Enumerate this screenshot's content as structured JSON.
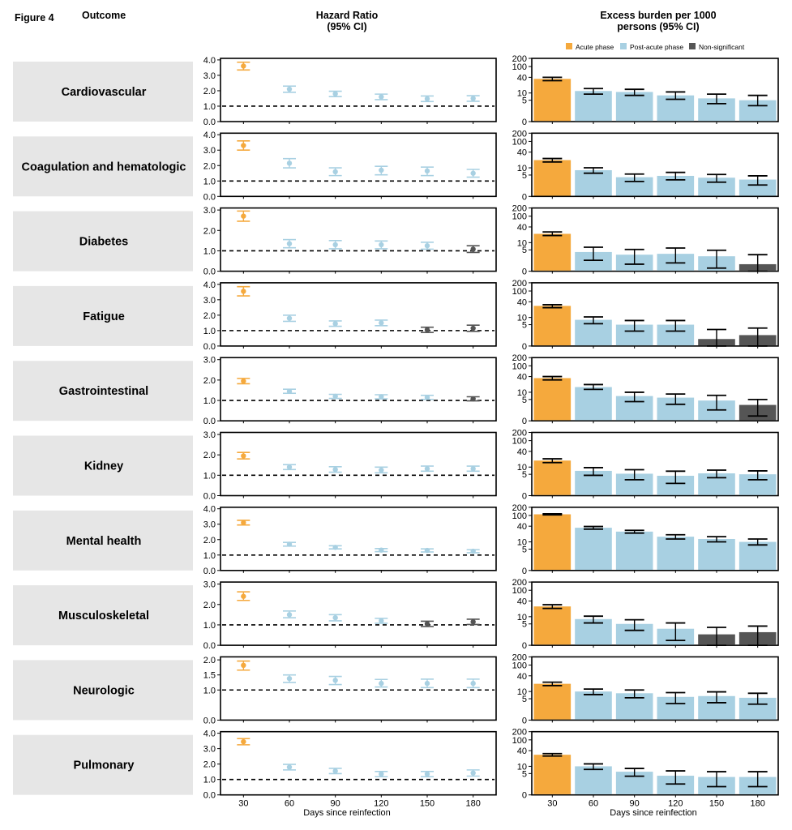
{
  "figure_label": "Figure 4",
  "headers": {
    "outcome": "Outcome",
    "hr_line1": "Hazard Ratio",
    "hr_line2": "(95% CI)",
    "eb_line1": "Excess burden per 1000",
    "eb_line2": "persons (95% CI)"
  },
  "legend": [
    {
      "label": "Acute phase",
      "color": "#F5A93D"
    },
    {
      "label": "Post-acute phase",
      "color": "#A8D0E2"
    },
    {
      "label": "Non-significant",
      "color": "#555555"
    }
  ],
  "colors": {
    "acute": "#F5A93D",
    "post": "#A8D0E2",
    "ns": "#555555",
    "label_bg": "#E6E6E6",
    "dash": "#000000"
  },
  "chart_data": {
    "type": "forest_and_bar",
    "x": [
      30,
      60,
      90,
      120,
      150,
      180
    ],
    "xlabel": "Days since reinfection",
    "outcomes": [
      {
        "name": "Cardiovascular",
        "hr_ticks": [
          "0.0",
          "1.0",
          "2.0",
          "3.0",
          "4.0"
        ],
        "hr_range": [
          0,
          4.1
        ],
        "hr": [
          [
            3.6,
            3.35,
            3.85
          ],
          [
            2.1,
            1.9,
            2.3
          ],
          [
            1.8,
            1.62,
            1.97
          ],
          [
            1.6,
            1.42,
            1.78
          ],
          [
            1.48,
            1.3,
            1.66
          ],
          [
            1.5,
            1.32,
            1.68
          ]
        ],
        "hr_status": [
          "acute",
          "post",
          "post",
          "post",
          "post",
          "post"
        ],
        "eb": [
          [
            35,
            30,
            40
          ],
          [
            12,
            9,
            15
          ],
          [
            11,
            8,
            14
          ],
          [
            8,
            5.5,
            11
          ],
          [
            6,
            3.5,
            9
          ],
          [
            5,
            2.8,
            8
          ]
        ],
        "eb_status": [
          "acute",
          "post",
          "post",
          "post",
          "post",
          "post"
        ]
      },
      {
        "name": "Coagulation and hematologic",
        "hr_ticks": [
          "0.0",
          "1.0",
          "2.0",
          "3.0",
          "4.0"
        ],
        "hr_range": [
          0,
          4.1
        ],
        "hr": [
          [
            3.3,
            3.0,
            3.6
          ],
          [
            2.15,
            1.85,
            2.45
          ],
          [
            1.6,
            1.35,
            1.85
          ],
          [
            1.7,
            1.4,
            1.95
          ],
          [
            1.65,
            1.35,
            1.9
          ],
          [
            1.5,
            1.25,
            1.75
          ]
        ],
        "hr_status": [
          "acute",
          "post",
          "post",
          "post",
          "post",
          "post"
        ],
        "eb": [
          [
            20,
            17,
            23
          ],
          [
            8,
            6,
            10
          ],
          [
            4,
            2.5,
            5.5
          ],
          [
            4.6,
            3,
            6.5
          ],
          [
            3.8,
            2.3,
            5.3
          ],
          [
            3.1,
            1.6,
            4.6
          ]
        ],
        "eb_status": [
          "acute",
          "post",
          "post",
          "post",
          "post",
          "post"
        ]
      },
      {
        "name": "Diabetes",
        "hr_ticks": [
          "0.0",
          "1.0",
          "2.0",
          "3.0"
        ],
        "hr_range": [
          0,
          3.1
        ],
        "hr": [
          [
            2.7,
            2.45,
            2.95
          ],
          [
            1.35,
            1.15,
            1.55
          ],
          [
            1.3,
            1.1,
            1.5
          ],
          [
            1.3,
            1.1,
            1.48
          ],
          [
            1.25,
            1.08,
            1.42
          ],
          [
            1.08,
            0.92,
            1.25
          ]
        ],
        "hr_status": [
          "acute",
          "post",
          "post",
          "post",
          "post",
          "ns"
        ],
        "eb": [
          [
            22,
            19,
            26
          ],
          [
            4,
            1.5,
            6.5
          ],
          [
            3,
            0.8,
            5.2
          ],
          [
            3.3,
            1,
            6
          ],
          [
            2.5,
            0.3,
            4.8
          ],
          [
            0.8,
            0,
            3
          ]
        ],
        "eb_status": [
          "acute",
          "post",
          "post",
          "post",
          "post",
          "ns"
        ]
      },
      {
        "name": "Fatigue",
        "hr_ticks": [
          "0.0",
          "1.0",
          "2.0",
          "3.0",
          "4.0"
        ],
        "hr_range": [
          0,
          4.1
        ],
        "hr": [
          [
            3.55,
            3.25,
            3.85
          ],
          [
            1.8,
            1.6,
            2.0
          ],
          [
            1.45,
            1.28,
            1.63
          ],
          [
            1.5,
            1.32,
            1.68
          ],
          [
            1.05,
            0.88,
            1.22
          ],
          [
            1.15,
            0.95,
            1.35
          ]
        ],
        "hr_status": [
          "acute",
          "post",
          "post",
          "post",
          "ns",
          "ns"
        ],
        "eb": [
          [
            28,
            24,
            31
          ],
          [
            8,
            5.5,
            10.5
          ],
          [
            5,
            2.5,
            7.5
          ],
          [
            5,
            2.5,
            7.5
          ],
          [
            0.8,
            0,
            3
          ],
          [
            1.5,
            0,
            3.5
          ]
        ],
        "eb_status": [
          "acute",
          "post",
          "post",
          "post",
          "ns",
          "ns"
        ]
      },
      {
        "name": "Gastrointestinal",
        "hr_ticks": [
          "0.0",
          "1.0",
          "2.0",
          "3.0"
        ],
        "hr_range": [
          0,
          3.1
        ],
        "hr": [
          [
            1.95,
            1.82,
            2.08
          ],
          [
            1.45,
            1.35,
            1.55
          ],
          [
            1.2,
            1.1,
            1.3
          ],
          [
            1.18,
            1.08,
            1.28
          ],
          [
            1.15,
            1.05,
            1.25
          ],
          [
            1.08,
            0.98,
            1.18
          ]
        ],
        "hr_status": [
          "acute",
          "post",
          "post",
          "post",
          "post",
          "ns"
        ],
        "eb": [
          [
            35,
            30,
            40
          ],
          [
            16,
            13,
            20
          ],
          [
            7,
            4,
            10
          ],
          [
            6,
            3,
            8.5
          ],
          [
            4.5,
            1.5,
            7.5
          ],
          [
            2.8,
            0.5,
            5
          ]
        ],
        "eb_status": [
          "acute",
          "post",
          "post",
          "post",
          "post",
          "ns"
        ]
      },
      {
        "name": "Kidney",
        "hr_ticks": [
          "0.0",
          "1.0",
          "2.0",
          "3.0"
        ],
        "hr_range": [
          0,
          3.1
        ],
        "hr": [
          [
            1.95,
            1.8,
            2.12
          ],
          [
            1.4,
            1.28,
            1.52
          ],
          [
            1.28,
            1.15,
            1.42
          ],
          [
            1.25,
            1.12,
            1.4
          ],
          [
            1.32,
            1.2,
            1.45
          ],
          [
            1.32,
            1.2,
            1.45
          ]
        ],
        "hr_status": [
          "acute",
          "post",
          "post",
          "post",
          "post",
          "post"
        ],
        "eb": [
          [
            18,
            15,
            21
          ],
          [
            7,
            4.5,
            9.5
          ],
          [
            5.3,
            2.8,
            7.8
          ],
          [
            4.3,
            1.8,
            6.8
          ],
          [
            5.5,
            3.5,
            7.5
          ],
          [
            5,
            2.8,
            7
          ]
        ],
        "eb_status": [
          "acute",
          "post",
          "post",
          "post",
          "post",
          "post"
        ]
      },
      {
        "name": "Mental health",
        "hr_ticks": [
          "0.0",
          "1.0",
          "2.0",
          "3.0",
          "4.0"
        ],
        "hr_range": [
          0,
          4.1
        ],
        "hr": [
          [
            3.1,
            2.95,
            3.25
          ],
          [
            1.7,
            1.58,
            1.82
          ],
          [
            1.5,
            1.4,
            1.6
          ],
          [
            1.32,
            1.22,
            1.42
          ],
          [
            1.3,
            1.2,
            1.4
          ],
          [
            1.25,
            1.15,
            1.35
          ]
        ],
        "hr_status": [
          "acute",
          "post",
          "post",
          "post",
          "post",
          "post"
        ],
        "eb": [
          [
            110,
            105,
            115
          ],
          [
            35,
            31,
            39
          ],
          [
            25,
            22,
            28
          ],
          [
            16,
            13,
            19
          ],
          [
            13,
            10,
            16
          ],
          [
            10,
            7.5,
            13
          ]
        ],
        "eb_status": [
          "acute",
          "post",
          "post",
          "post",
          "post",
          "post"
        ]
      },
      {
        "name": "Musculoskeletal",
        "hr_ticks": [
          "0.0",
          "1.0",
          "2.0",
          "3.0"
        ],
        "hr_range": [
          0,
          3.1
        ],
        "hr": [
          [
            2.4,
            2.2,
            2.62
          ],
          [
            1.5,
            1.35,
            1.68
          ],
          [
            1.35,
            1.2,
            1.5
          ],
          [
            1.2,
            1.08,
            1.32
          ],
          [
            1.05,
            0.92,
            1.18
          ],
          [
            1.15,
            1.02,
            1.28
          ]
        ],
        "hr_status": [
          "acute",
          "post",
          "post",
          "post",
          "ns",
          "ns"
        ],
        "eb": [
          [
            25,
            21,
            29
          ],
          [
            8,
            5.5,
            10.5
          ],
          [
            5,
            2.5,
            7.5
          ],
          [
            3,
            0.5,
            5.5
          ],
          [
            1.5,
            0,
            3.5
          ],
          [
            2,
            0,
            4
          ]
        ],
        "eb_status": [
          "acute",
          "post",
          "post",
          "post",
          "ns",
          "ns"
        ]
      },
      {
        "name": "Neurologic",
        "hr_ticks": [
          "0.0",
          "1.0",
          "1.5",
          "2.0"
        ],
        "hr_range": [
          0,
          2.1
        ],
        "hr": [
          [
            1.82,
            1.66,
            1.96
          ],
          [
            1.38,
            1.25,
            1.5
          ],
          [
            1.32,
            1.18,
            1.45
          ],
          [
            1.22,
            1.1,
            1.35
          ],
          [
            1.22,
            1.08,
            1.36
          ],
          [
            1.22,
            1.08,
            1.36
          ]
        ],
        "hr_status": [
          "acute",
          "post",
          "post",
          "post",
          "post",
          "post"
        ],
        "eb": [
          [
            20,
            17,
            23
          ],
          [
            10,
            7.5,
            12.5
          ],
          [
            8.5,
            5.5,
            11.5
          ],
          [
            6,
            3,
            9
          ],
          [
            6.5,
            3.3,
            9.7
          ],
          [
            5.5,
            2.8,
            8.5
          ]
        ],
        "eb_status": [
          "acute",
          "post",
          "post",
          "post",
          "post",
          "post"
        ]
      },
      {
        "name": "Pulmonary",
        "hr_ticks": [
          "0.0",
          "1.0",
          "2.0",
          "3.0",
          "4.0"
        ],
        "hr_range": [
          0,
          4.1
        ],
        "hr": [
          [
            3.45,
            3.25,
            3.65
          ],
          [
            1.8,
            1.62,
            1.98
          ],
          [
            1.55,
            1.38,
            1.72
          ],
          [
            1.35,
            1.18,
            1.52
          ],
          [
            1.35,
            1.18,
            1.52
          ],
          [
            1.42,
            1.22,
            1.62
          ]
        ],
        "hr_status": [
          "acute",
          "post",
          "post",
          "post",
          "post",
          "post"
        ],
        "eb": [
          [
            28,
            25,
            31
          ],
          [
            10,
            7.5,
            12.5
          ],
          [
            6,
            3.8,
            8.2
          ],
          [
            4,
            1.5,
            6.5
          ],
          [
            3.5,
            1,
            6
          ],
          [
            3.5,
            1,
            6
          ]
        ],
        "eb_status": [
          "acute",
          "post",
          "post",
          "post",
          "post",
          "post"
        ]
      }
    ],
    "eb_ticks": [
      "0",
      "5",
      "10",
      "40",
      "100",
      "200"
    ],
    "eb_tick_values": [
      0,
      5,
      10,
      40,
      100,
      200
    ],
    "eb_scale": "log1p"
  }
}
